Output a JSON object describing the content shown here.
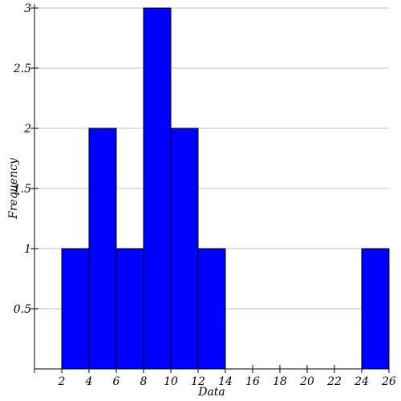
{
  "chart_data": {
    "type": "bar",
    "title": "",
    "xlabel": "Data",
    "ylabel": "Frequency",
    "bins": [
      {
        "start": 2,
        "end": 4,
        "value": 1
      },
      {
        "start": 4,
        "end": 6,
        "value": 2
      },
      {
        "start": 6,
        "end": 8,
        "value": 1
      },
      {
        "start": 8,
        "end": 10,
        "value": 3
      },
      {
        "start": 10,
        "end": 12,
        "value": 2
      },
      {
        "start": 12,
        "end": 14,
        "value": 1
      },
      {
        "start": 24,
        "end": 26,
        "value": 1
      }
    ],
    "xlim": [
      0,
      26
    ],
    "ylim": [
      0,
      3
    ],
    "xticks": [
      "2",
      "4",
      "6",
      "8",
      "10",
      "12",
      "14",
      "16",
      "18",
      "20",
      "22",
      "24",
      "26"
    ],
    "yticks": [
      "0.5",
      "1",
      "1.5",
      "2",
      "2.5",
      "3"
    ],
    "grid": "horizontal",
    "colors": {
      "bar": "#0000ff",
      "bar_edge": "#000000",
      "grid": "#c0c0c0",
      "axis": "#000000"
    }
  }
}
